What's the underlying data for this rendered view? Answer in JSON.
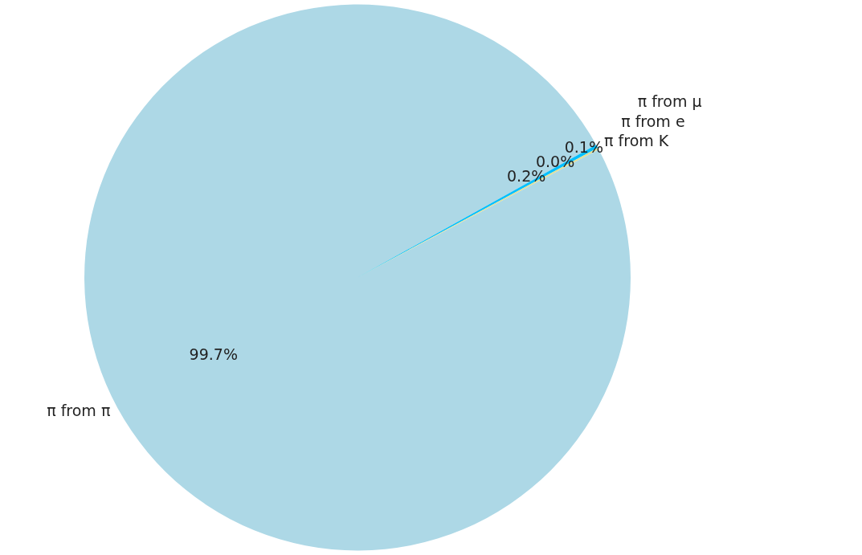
{
  "chart_data": {
    "type": "pie",
    "categories": [
      "π from π",
      "π from K",
      "π from e",
      "π from μ"
    ],
    "values": [
      99.7,
      0.2,
      0.0,
      0.1
    ],
    "colors": [
      "#add8e6",
      "#00bfff",
      "#c8e6b0",
      "#dede98"
    ],
    "value_labels": [
      "99.7%",
      "0.2%",
      "0.0%",
      "0.1%"
    ]
  }
}
